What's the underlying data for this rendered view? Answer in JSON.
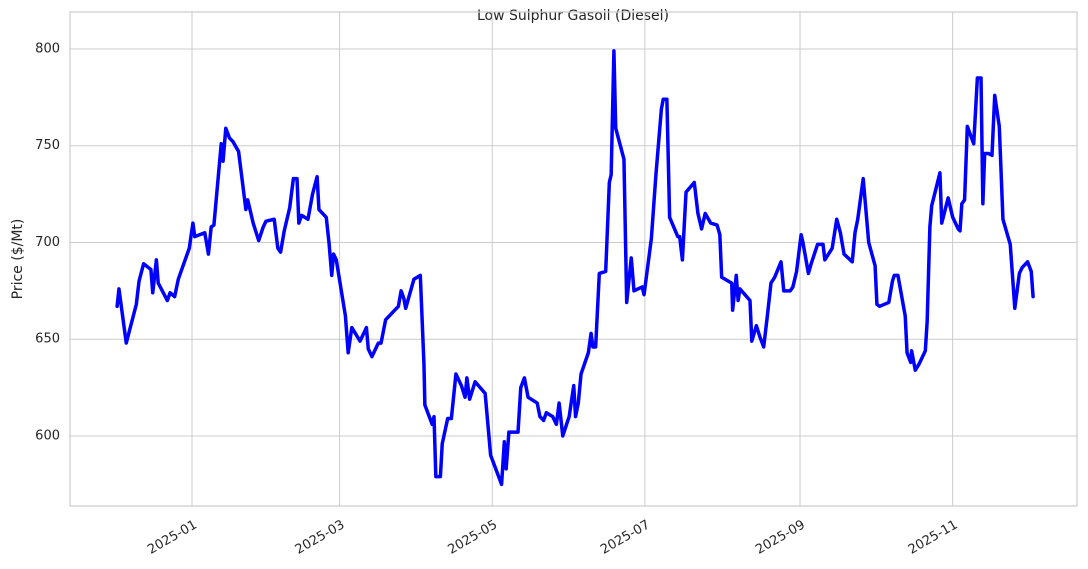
{
  "chart_data": {
    "type": "line",
    "title": "Low Sulphur Gasoil (Diesel)",
    "y_label": "Price ($/Mt)",
    "x": [
      2024.918,
      2024.92,
      2024.928,
      2024.939,
      2024.942,
      2024.947,
      2024.955,
      2024.957,
      2024.961,
      2024.963,
      2024.973,
      2024.976,
      2024.981,
      2024.985,
      2024.997,
      2025.001,
      2025.003,
      2025.014,
      2025.018,
      2025.021,
      2025.024,
      2025.032,
      2025.034,
      2025.037,
      2025.041,
      2025.045,
      2025.051,
      2025.059,
      2025.061,
      2025.067,
      2025.073,
      2025.078,
      2025.081,
      2025.09,
      2025.094,
      2025.097,
      2025.101,
      2025.107,
      2025.111,
      2025.115,
      2025.117,
      2025.12,
      2025.127,
      2025.132,
      2025.137,
      2025.139,
      2025.147,
      2025.15,
      2025.153,
      2025.155,
      2025.158,
      2025.168,
      2025.171,
      2025.175,
      2025.184,
      2025.191,
      2025.193,
      2025.197,
      2025.204,
      2025.207,
      2025.212,
      2025.226,
      2025.229,
      2025.232,
      2025.234,
      2025.243,
      2025.25,
      2025.254,
      2025.255,
      2025.263,
      2025.265,
      2025.267,
      2025.272,
      2025.274,
      2025.28,
      2025.284,
      2025.289,
      2025.295,
      2025.299,
      2025.301,
      2025.304,
      2025.31,
      2025.321,
      2025.324,
      2025.327,
      2025.339,
      2025.342,
      2025.344,
      2025.347,
      2025.357,
      2025.36,
      2025.364,
      2025.368,
      2025.378,
      2025.381,
      2025.385,
      2025.388,
      2025.395,
      2025.399,
      2025.402,
      2025.406,
      2025.413,
      2025.418,
      2025.42,
      2025.423,
      2025.426,
      2025.434,
      2025.437,
      2025.439,
      2025.442,
      2025.446,
      2025.453,
      2025.457,
      2025.459,
      2025.462,
      2025.464,
      2025.473,
      2025.476,
      2025.481,
      2025.484,
      2025.493,
      2025.495,
      2025.503,
      2025.508,
      2025.514,
      2025.516,
      2025.52,
      2025.523,
      2025.532,
      2025.534,
      2025.537,
      2025.541,
      2025.55,
      2025.554,
      2025.558,
      2025.562,
      2025.568,
      2025.575,
      2025.578,
      2025.58,
      2025.591,
      2025.592,
      2025.596,
      2025.598,
      2025.6,
      2025.611,
      2025.613,
      2025.618,
      2025.622,
      2025.626,
      2025.63,
      2025.634,
      2025.638,
      2025.645,
      2025.648,
      2025.655,
      2025.658,
      2025.662,
      2025.667,
      2025.669,
      2025.675,
      2025.678,
      2025.685,
      2025.691,
      2025.693,
      2025.701,
      2025.706,
      2025.71,
      2025.714,
      2025.723,
      2025.726,
      2025.729,
      2025.735,
      2025.741,
      2025.748,
      2025.75,
      2025.753,
      2025.763,
      2025.767,
      2025.769,
      2025.773,
      2025.781,
      2025.783,
      2025.787,
      2025.788,
      2025.792,
      2025.796,
      2025.803,
      2025.805,
      2025.808,
      2025.81,
      2025.819,
      2025.821,
      2025.828,
      2025.833,
      2025.839,
      2025.841,
      2025.843,
      2025.846,
      2025.849,
      2025.856,
      2025.86,
      2025.864,
      2025.866,
      2025.868,
      2025.872,
      2025.876,
      2025.879,
      2025.884,
      2025.888,
      2025.896,
      2025.901,
      2025.906,
      2025.909,
      2025.915,
      2025.919,
      2025.921
    ],
    "series": [
      {
        "color": "#0000ff",
        "values": [
          667,
          676,
          648,
          668,
          680,
          689,
          686,
          674,
          691,
          679,
          670,
          674,
          672,
          681,
          697,
          710,
          703,
          705,
          694,
          708,
          709,
          751,
          742,
          759,
          754,
          752,
          747,
          717,
          722,
          710,
          701,
          708,
          711,
          712,
          697,
          695,
          706,
          718,
          733,
          733,
          710,
          714,
          712,
          725,
          734,
          717,
          713,
          700,
          683,
          694,
          691,
          662,
          643,
          656,
          649,
          656,
          645,
          641,
          648,
          648,
          660,
          667,
          675,
          671,
          666,
          681,
          683,
          637,
          616,
          606,
          610,
          579,
          579,
          596,
          609,
          609,
          632,
          626,
          620,
          630,
          619,
          628,
          622,
          606,
          590,
          575,
          597,
          583,
          602,
          602,
          625,
          630,
          620,
          617,
          610,
          608,
          612,
          610,
          606,
          617,
          600,
          610,
          626,
          610,
          617,
          632,
          643,
          653,
          646,
          646,
          684,
          685,
          731,
          735,
          799,
          759,
          743,
          669,
          692,
          675,
          677,
          673,
          702,
          735,
          769,
          774,
          774,
          713,
          703,
          703,
          691,
          726,
          731,
          715,
          707,
          715,
          710,
          709,
          704,
          682,
          679,
          665,
          683,
          670,
          676,
          670,
          649,
          657,
          651,
          646,
          662,
          679,
          682,
          690,
          675,
          675,
          677,
          685,
          704,
          700,
          684,
          689,
          699,
          699,
          691,
          697,
          712,
          705,
          694,
          690,
          705,
          712,
          733,
          700,
          688,
          668,
          667,
          669,
          680,
          683,
          683,
          662,
          643,
          638,
          644,
          634,
          637,
          644,
          659,
          708,
          719,
          736,
          710,
          723,
          713,
          707,
          706,
          720,
          722,
          760,
          751,
          785,
          785,
          720,
          746,
          746,
          745,
          776,
          760,
          712,
          699,
          666,
          684,
          687,
          690,
          685,
          672
        ]
      }
    ],
    "xlim": [
      2024.8664,
      2025.9691
    ],
    "xticks": [
      {
        "value": 2025.0,
        "label": "2025-01"
      },
      {
        "value": 2025.1616,
        "label": "2025-03"
      },
      {
        "value": 2025.3288,
        "label": "2025-05"
      },
      {
        "value": 2025.4959,
        "label": "2025-07"
      },
      {
        "value": 2025.6658,
        "label": "2025-09"
      },
      {
        "value": 2025.8329,
        "label": "2025-11"
      }
    ],
    "ylim": [
      563.8,
      819.1
    ],
    "yticks": [
      600,
      650,
      700,
      750,
      800
    ],
    "grid": true
  }
}
